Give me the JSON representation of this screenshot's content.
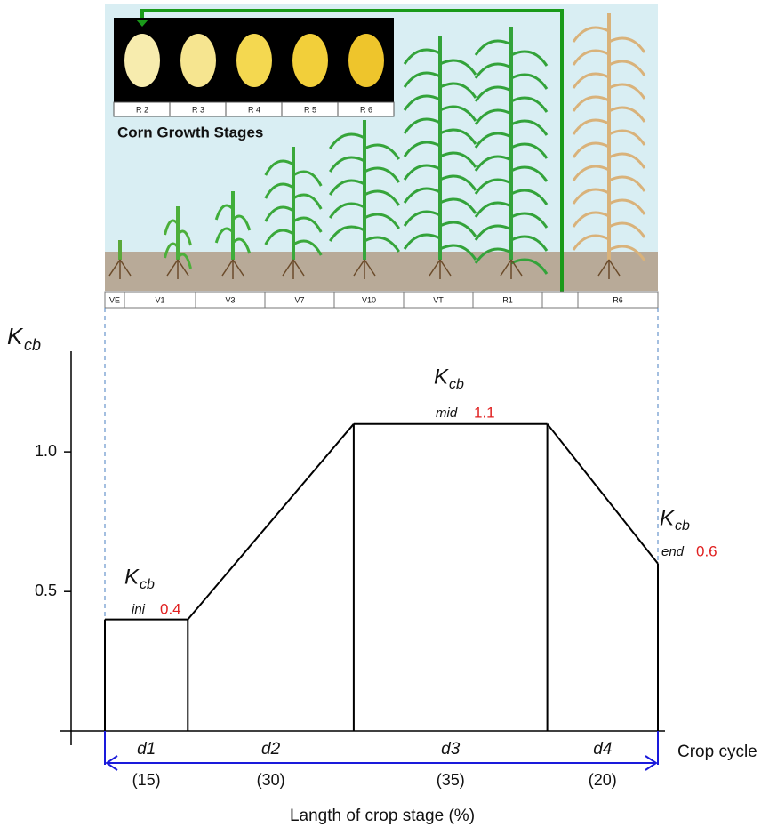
{
  "chart_data": {
    "type": "kc-curve",
    "y_axis_symbol": "K",
    "y_axis_subscript": "cb",
    "ylim": [
      -0.05,
      1.36
    ],
    "yticks": [
      {
        "value": 0.5,
        "label": "0.5"
      },
      {
        "value": 1,
        "label": "1.0"
      }
    ],
    "kcb": {
      "ini": 0.4,
      "mid": 1.1,
      "end": 0.6
    },
    "kcb_names": {
      "ini": "ini",
      "mid": "mid",
      "end": "end"
    },
    "stages": {
      "names": [
        "d1",
        "d2",
        "d3",
        "d4"
      ],
      "values": [
        15,
        30,
        35,
        20
      ],
      "value_labels": [
        "(15)",
        "(30)",
        "(35)",
        "(20)"
      ]
    },
    "x_axis_label": "Crop cycle",
    "span_label": "Langth of crop stage (%)",
    "line_color": "#000000",
    "span_color": "#1a1adb",
    "illustration": {
      "title": "Corn Growth Stages",
      "kernel_stages": [
        "R 2",
        "R 3",
        "R 4",
        "R 5",
        "R 6"
      ],
      "growth_stages": [
        "VE",
        "V1",
        "V3",
        "V7",
        "V10",
        "VT",
        "R1",
        "R6"
      ]
    }
  }
}
